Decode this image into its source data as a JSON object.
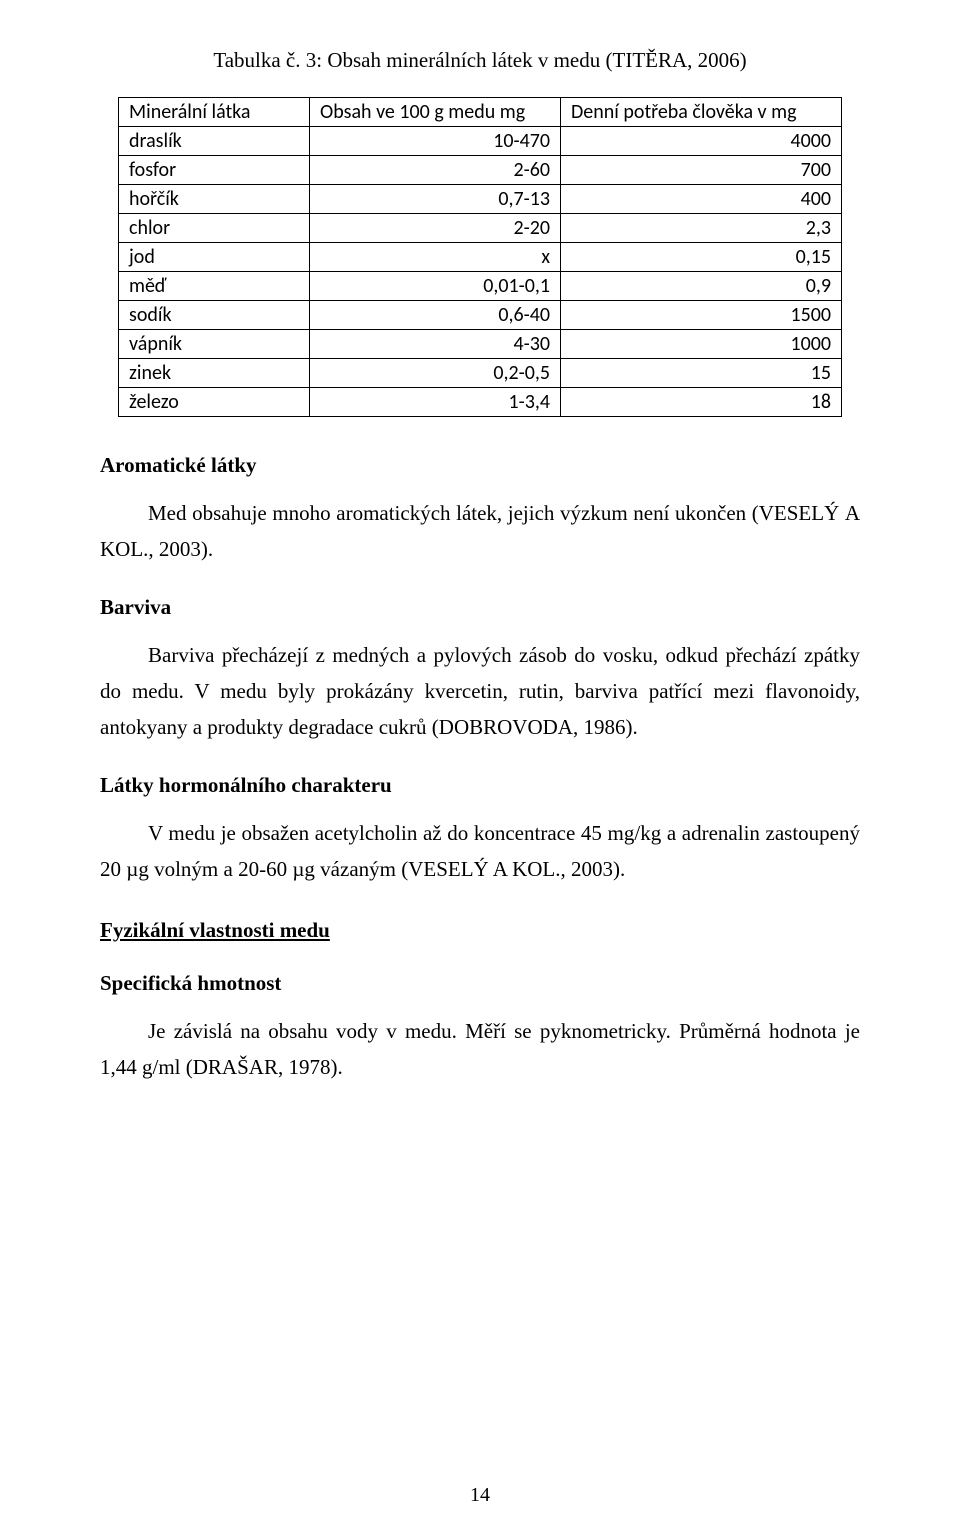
{
  "table": {
    "caption_prefix": "Tabulka č. 3: Obsah minerálních látek v medu (T",
    "caption_smallcaps": "ITĚRA",
    "caption_suffix": ", 2006)",
    "headers": [
      "Minerální látka",
      "Obsah ve 100 g medu mg",
      "Denní potřeba člověka v mg"
    ],
    "rows": [
      [
        "draslík",
        "10-470",
        "4000"
      ],
      [
        "fosfor",
        "2-60",
        "700"
      ],
      [
        "hořčík",
        "0,7-13",
        "400"
      ],
      [
        "chlor",
        "2-20",
        "2,3"
      ],
      [
        "jod",
        "x",
        "0,15"
      ],
      [
        "měď",
        "0,01-0,1",
        "0,9"
      ],
      [
        "sodík",
        "0,6-40",
        "1500"
      ],
      [
        "vápník",
        "4-30",
        "1000"
      ],
      [
        "zinek",
        "0,2-0,5",
        "15"
      ],
      [
        "železo",
        "1-3,4",
        "18"
      ]
    ]
  },
  "sections": {
    "aromatic": {
      "heading": "Aromatické látky",
      "p_pre": "Med obsahuje mnoho aromatických látek, jejich výzkum není ukončen (V",
      "p_sc1": "ESELÝ",
      "p_mid": " ",
      "p_sc2": "A KOL",
      "p_post": "., 2003)."
    },
    "barviva": {
      "heading": "Barviva",
      "p_pre": "Barviva přecházejí z medných a pylových zásob do vosku, odkud přechází zpátky do medu. V medu byly prokázány kvercetin, rutin, barviva patřící mezi flavonoidy, antokyany a produkty degradace cukrů (D",
      "p_sc": "OBROVODA",
      "p_post": ", 1986)."
    },
    "hormon": {
      "heading": "Látky hormonálního charakteru",
      "p_pre": "V medu je obsažen acetylcholin až do koncentrace 45 mg/kg a adrenalin zastoupený 20 µg volným a 20-60 µg vázaným (V",
      "p_sc1": "ESELÝ A KOL",
      "p_post": "., 2003)."
    },
    "fyz": {
      "heading": "Fyzikální vlastnosti medu"
    },
    "specific": {
      "heading": "Specifická hmotnost",
      "p_pre": "Je závislá na obsahu vody v medu. Měří se pyknometricky. Průměrná hodnota je 1,44 g/ml (D",
      "p_sc": "RAŠAR",
      "p_post": ", 1978)."
    }
  },
  "page_number": "14"
}
